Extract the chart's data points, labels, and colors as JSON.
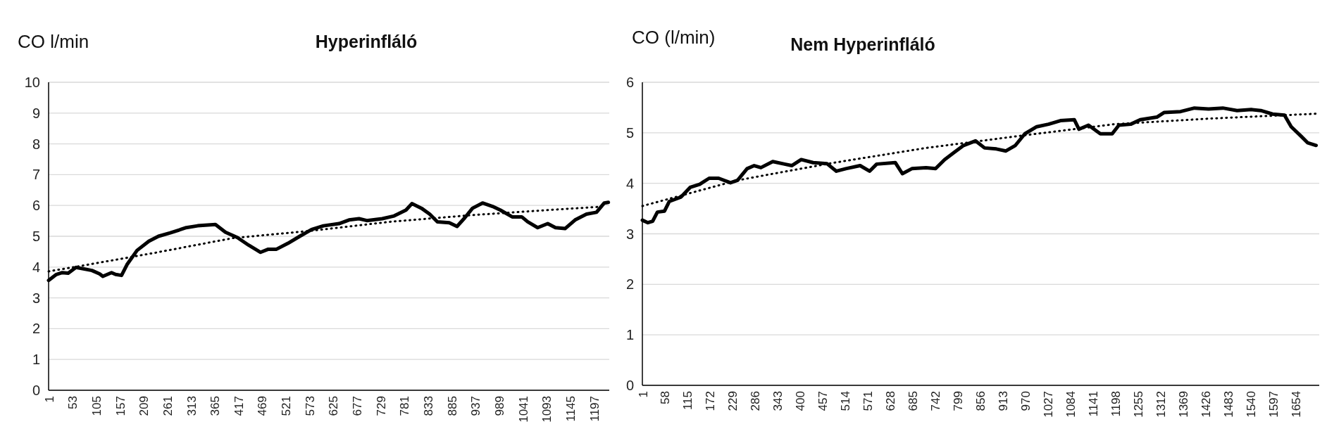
{
  "chart_data": [
    {
      "type": "line",
      "title": "Hyperinfláló",
      "ylabel": "CO l/min",
      "grid": "y",
      "xlim": [
        0,
        1230
      ],
      "ylim": [
        0,
        10
      ],
      "yticks": [
        0,
        1,
        2,
        3,
        4,
        5,
        6,
        7,
        8,
        9,
        10
      ],
      "xticks": [
        1,
        53,
        105,
        157,
        209,
        261,
        313,
        365,
        417,
        469,
        521,
        573,
        625,
        677,
        729,
        781,
        833,
        885,
        937,
        989,
        1041,
        1093,
        1145,
        1197
      ],
      "series": [
        {
          "color": "#000000",
          "line_style": "solid",
          "x": [
            0,
            17,
            30,
            43,
            60,
            95,
            112,
            119,
            138,
            147,
            160,
            172,
            194,
            220,
            241,
            267,
            302,
            327,
            366,
            388,
            414,
            439,
            465,
            482,
            500,
            525,
            551,
            577,
            603,
            637,
            659,
            681,
            698,
            732,
            758,
            784,
            797,
            818,
            836,
            853,
            879,
            896,
            913,
            930,
            952,
            974,
            991,
            1017,
            1038,
            1051,
            1073,
            1095,
            1112,
            1133,
            1155,
            1180,
            1202,
            1219,
            1228
          ],
          "values": [
            3.57,
            3.76,
            3.82,
            3.8,
            3.99,
            3.89,
            3.78,
            3.7,
            3.82,
            3.76,
            3.73,
            4.08,
            4.54,
            4.84,
            5.0,
            5.11,
            5.28,
            5.34,
            5.38,
            5.13,
            4.96,
            4.71,
            4.48,
            4.58,
            4.58,
            4.77,
            5.0,
            5.22,
            5.34,
            5.41,
            5.53,
            5.57,
            5.51,
            5.57,
            5.66,
            5.85,
            6.06,
            5.91,
            5.72,
            5.47,
            5.44,
            5.32,
            5.6,
            5.91,
            6.08,
            5.97,
            5.85,
            5.63,
            5.63,
            5.47,
            5.28,
            5.41,
            5.28,
            5.25,
            5.53,
            5.72,
            5.78,
            6.08,
            6.1
          ]
        },
        {
          "color": "#000000",
          "line_style": "dotted",
          "x": [
            0,
            60,
            232,
            404,
            577,
            749,
            922,
            1094,
            1223
          ],
          "values": [
            3.86,
            4.01,
            4.46,
            4.94,
            5.18,
            5.47,
            5.68,
            5.85,
            5.97
          ]
        }
      ]
    },
    {
      "type": "line",
      "title": "Nem Hyperinfláló",
      "ylabel": "CO (l/min)",
      "grid": "y",
      "xlim": [
        0,
        1713
      ],
      "ylim": [
        0,
        6
      ],
      "yticks": [
        0,
        1,
        2,
        3,
        4,
        5,
        6
      ],
      "xticks": [
        1,
        58,
        115,
        172,
        229,
        286,
        343,
        400,
        457,
        514,
        571,
        628,
        685,
        742,
        799,
        856,
        913,
        970,
        1027,
        1084,
        1141,
        1198,
        1255,
        1312,
        1369,
        1426,
        1483,
        1540,
        1597,
        1654
      ],
      "series": [
        {
          "color": "#000000",
          "line_style": "solid",
          "x": [
            0,
            14,
            26,
            38,
            56,
            68,
            98,
            121,
            145,
            169,
            193,
            223,
            241,
            265,
            283,
            300,
            330,
            360,
            378,
            402,
            432,
            467,
            491,
            515,
            551,
            575,
            593,
            640,
            658,
            682,
            718,
            742,
            765,
            789,
            813,
            843,
            866,
            896,
            920,
            944,
            968,
            998,
            1028,
            1058,
            1093,
            1105,
            1129,
            1159,
            1189,
            1206,
            1236,
            1260,
            1302,
            1320,
            1362,
            1397,
            1433,
            1469,
            1505,
            1541,
            1565,
            1595,
            1625,
            1642,
            1666,
            1684,
            1705
          ],
          "values": [
            3.27,
            3.22,
            3.25,
            3.43,
            3.45,
            3.64,
            3.73,
            3.92,
            3.98,
            4.1,
            4.1,
            4.01,
            4.06,
            4.29,
            4.35,
            4.31,
            4.43,
            4.38,
            4.35,
            4.47,
            4.41,
            4.39,
            4.24,
            4.29,
            4.35,
            4.24,
            4.38,
            4.41,
            4.19,
            4.29,
            4.31,
            4.29,
            4.47,
            4.61,
            4.75,
            4.84,
            4.7,
            4.68,
            4.64,
            4.75,
            4.98,
            5.12,
            5.17,
            5.24,
            5.26,
            5.07,
            5.15,
            4.98,
            4.98,
            5.15,
            5.17,
            5.26,
            5.31,
            5.4,
            5.42,
            5.49,
            5.47,
            5.49,
            5.44,
            5.46,
            5.44,
            5.37,
            5.35,
            5.12,
            4.94,
            4.8,
            4.75
          ]
        },
        {
          "color": "#000000",
          "line_style": "dotted",
          "x": [
            0,
            241,
            479,
            718,
            956,
            1194,
            1433,
            1713
          ],
          "values": [
            3.55,
            4.06,
            4.4,
            4.7,
            4.94,
            5.17,
            5.28,
            5.38
          ]
        }
      ]
    }
  ]
}
